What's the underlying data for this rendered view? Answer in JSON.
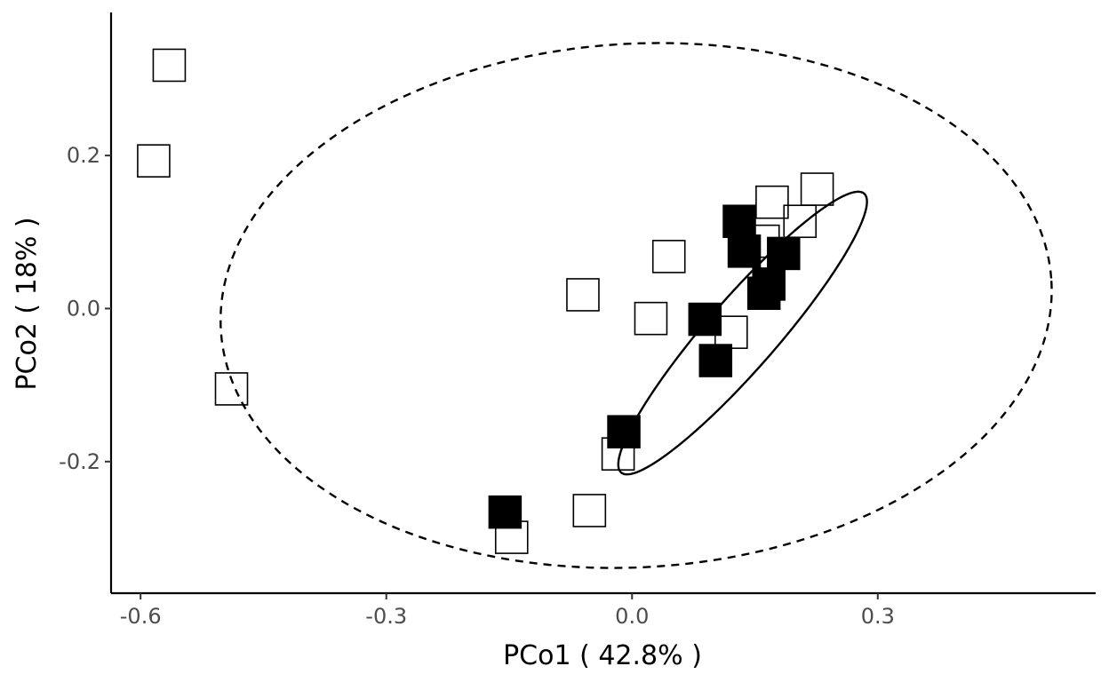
{
  "chart_data": {
    "type": "scatter",
    "title": "",
    "xlabel": "PCo1 ( 42.8% )",
    "ylabel": "PCo2 ( 18% )",
    "xlim": [
      -0.636,
      0.566
    ],
    "ylim": [
      -0.372,
      0.387
    ],
    "x_ticks": [
      {
        "value": -0.6,
        "label": "-0.6"
      },
      {
        "value": -0.3,
        "label": "-0.3"
      },
      {
        "value": 0.0,
        "label": "0.0"
      },
      {
        "value": 0.3,
        "label": "0.3"
      }
    ],
    "y_ticks": [
      {
        "value": -0.2,
        "label": "-0.2"
      },
      {
        "value": 0.0,
        "label": "0.0"
      },
      {
        "value": 0.2,
        "label": "0.2"
      }
    ],
    "grid": false,
    "legend": "none",
    "marker": "square",
    "series": [
      {
        "fill": "none",
        "stroke": "#000000",
        "points": [
          {
            "x": -0.565,
            "y": 0.318
          },
          {
            "x": -0.584,
            "y": 0.193
          },
          {
            "x": -0.489,
            "y": -0.105
          },
          {
            "x": -0.06,
            "y": 0.018
          },
          {
            "x": 0.045,
            "y": 0.068
          },
          {
            "x": 0.023,
            "y": -0.013
          },
          {
            "x": 0.171,
            "y": 0.139
          },
          {
            "x": 0.226,
            "y": 0.156
          },
          {
            "x": 0.205,
            "y": 0.114
          },
          {
            "x": 0.16,
            "y": 0.088
          },
          {
            "x": 0.121,
            "y": -0.031
          },
          {
            "x": -0.017,
            "y": -0.19
          },
          {
            "x": -0.052,
            "y": -0.264
          },
          {
            "x": -0.147,
            "y": -0.299
          }
        ]
      },
      {
        "fill": "#000000",
        "stroke": "#000000",
        "points": [
          {
            "x": 0.131,
            "y": 0.114
          },
          {
            "x": 0.137,
            "y": 0.075
          },
          {
            "x": 0.185,
            "y": 0.072
          },
          {
            "x": 0.167,
            "y": 0.032
          },
          {
            "x": 0.161,
            "y": 0.02
          },
          {
            "x": 0.089,
            "y": -0.014
          },
          {
            "x": 0.102,
            "y": -0.068
          },
          {
            "x": -0.01,
            "y": -0.161
          },
          {
            "x": -0.155,
            "y": -0.266
          }
        ]
      }
    ],
    "ellipses": [
      {
        "style": "dashed",
        "center": [
          0.005,
          0.004
        ],
        "rx": 0.508,
        "ry": 0.342,
        "angle_deg": 4
      },
      {
        "style": "solid",
        "center": [
          0.135,
          -0.032
        ],
        "rx": 0.235,
        "ry": 0.044,
        "angle_deg": 51
      }
    ]
  }
}
